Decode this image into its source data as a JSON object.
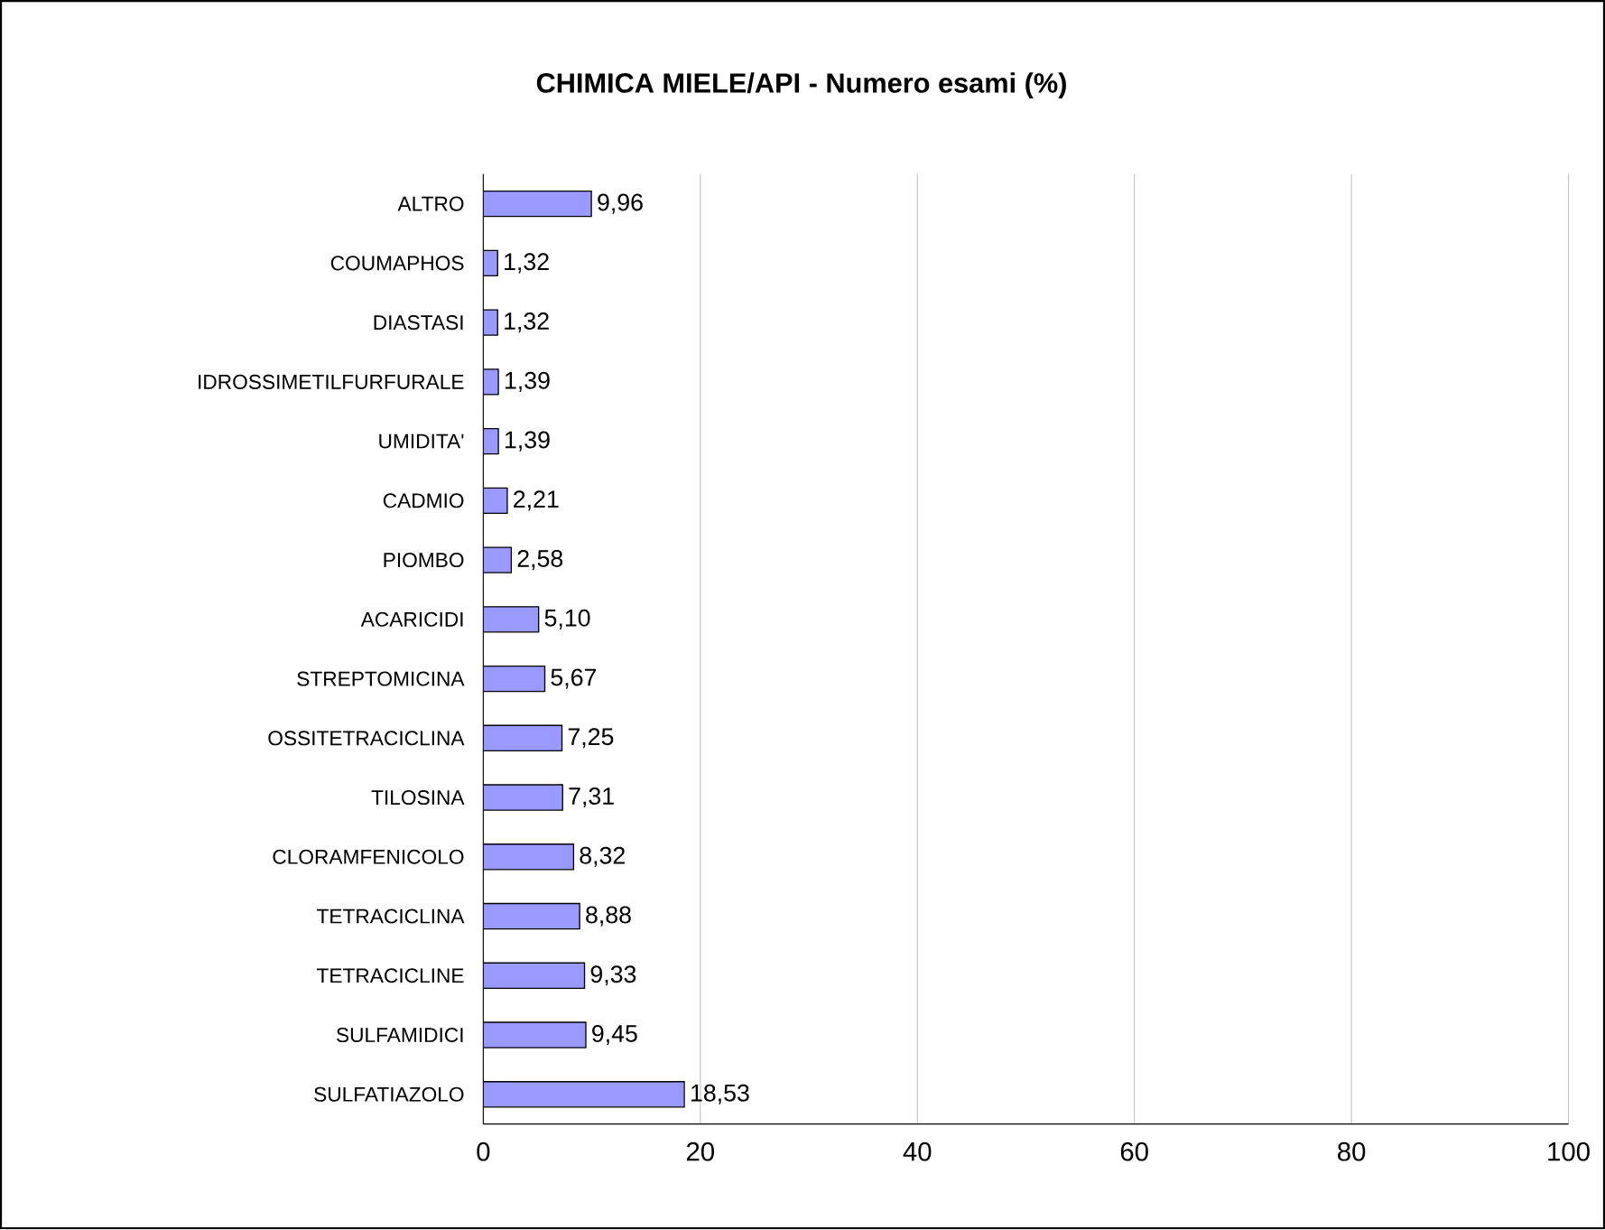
{
  "chart_data": {
    "type": "bar",
    "orientation": "horizontal",
    "title": "CHIMICA MIELE/API - Numero esami (%)",
    "categories": [
      "ALTRO",
      "COUMAPHOS",
      "DIASTASI",
      "IDROSSIMETILFURFURALE",
      "UMIDITA'",
      "CADMIO",
      "PIOMBO",
      "ACARICIDI",
      "STREPTOMICINA",
      "OSSITETRACICLINA",
      "TILOSINA",
      "CLORAMFENICOLO",
      "TETRACICLINA",
      "TETRACICLINE",
      "SULFAMIDICI",
      "SULFATIAZOLO"
    ],
    "values": [
      9.96,
      1.32,
      1.32,
      1.39,
      1.39,
      2.21,
      2.58,
      5.1,
      5.67,
      7.25,
      7.31,
      8.32,
      8.88,
      9.33,
      9.45,
      18.53
    ],
    "value_labels": [
      "9,96",
      "1,32",
      "1,32",
      "1,39",
      "1,39",
      "2,21",
      "2,58",
      "5,10",
      "5,67",
      "7,25",
      "7,31",
      "8,32",
      "8,88",
      "9,33",
      "9,45",
      "18,53"
    ],
    "color": "#9999ff",
    "xlim": [
      0,
      100
    ],
    "xticks": [
      0,
      20,
      40,
      60,
      80,
      100
    ],
    "grid": "x"
  }
}
